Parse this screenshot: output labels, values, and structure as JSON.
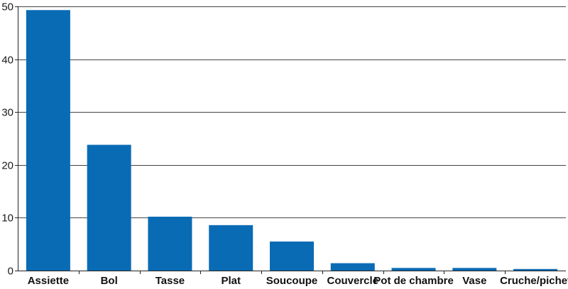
{
  "chart_data": {
    "type": "bar",
    "categories": [
      "Assiette",
      "Bol",
      "Tasse",
      "Plat",
      "Soucoupe",
      "Couvercle",
      "Pot de chambre",
      "Vase",
      "Cruche/pichet"
    ],
    "values": [
      49.3,
      23.8,
      10.2,
      8.6,
      5.5,
      1.4,
      0.5,
      0.5,
      0.3
    ],
    "ylim": [
      0,
      50
    ],
    "yticks": [
      0,
      10,
      20,
      30,
      40,
      50
    ],
    "grid": true,
    "bar_color": "#0a6bb5"
  }
}
